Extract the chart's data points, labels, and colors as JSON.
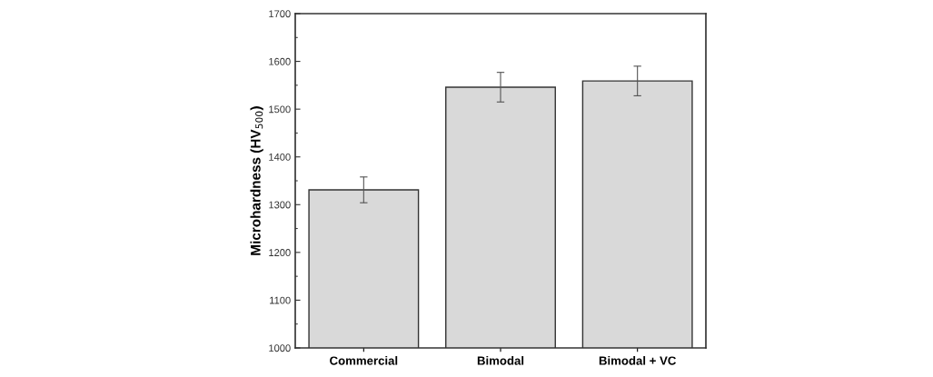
{
  "chart_data": {
    "type": "bar",
    "ylabel": "Microhardness (HV$_{500}$)",
    "categories": [
      "Commercial",
      "Bimodal",
      "Bimodal + VC"
    ],
    "values": [
      1331,
      1546,
      1559
    ],
    "errors": [
      27,
      31,
      31
    ],
    "color": "#d9d9d9",
    "ylim": [
      1000,
      1700
    ],
    "yticks": [
      1000,
      1100,
      1200,
      1300,
      1400,
      1500,
      1600,
      1700
    ],
    "grid": false
  }
}
